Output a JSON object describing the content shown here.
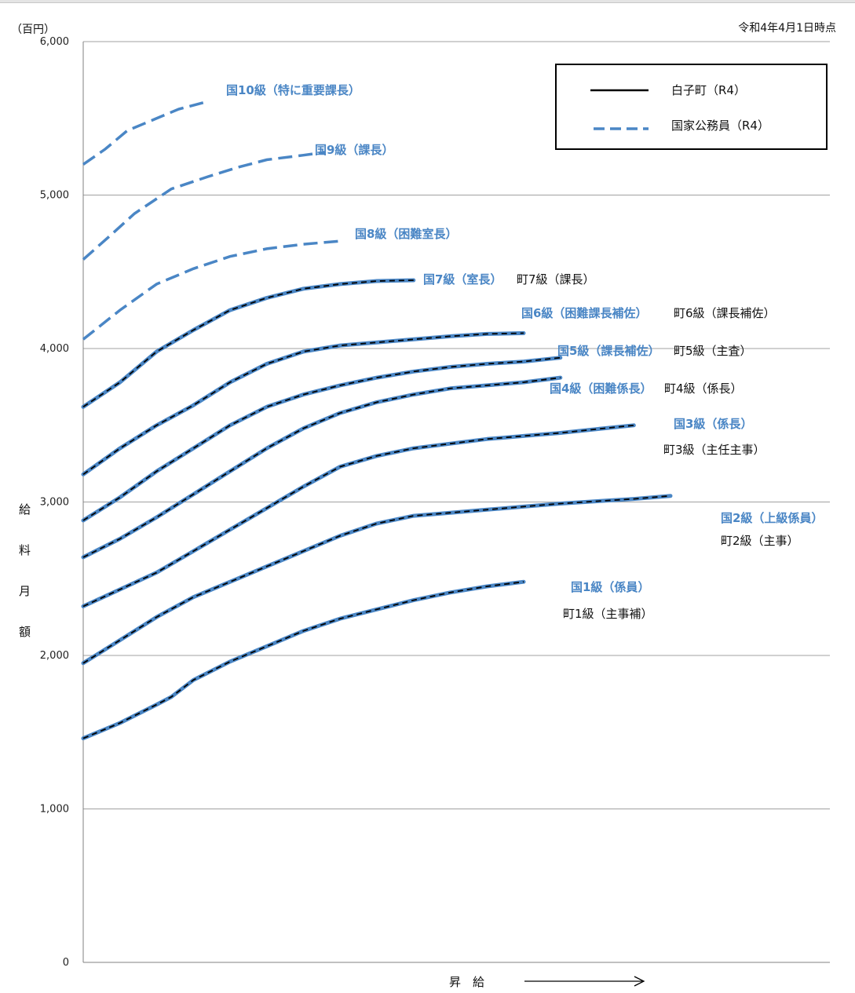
{
  "chart_data": {
    "type": "line",
    "title": "",
    "y_unit_label": "（百円）",
    "ylabel": "給料月額",
    "xlabel": "昇　給",
    "date_note": "令和4年4月1日時点",
    "ylim": [
      0,
      6000
    ],
    "xlim": [
      0,
      100
    ],
    "yticks": [
      "0",
      "1,000",
      "2,000",
      "3,000",
      "4,000",
      "5,000",
      "6,000"
    ],
    "ytick_values": [
      0,
      1000,
      2000,
      3000,
      4000,
      5000,
      6000
    ],
    "grid": true,
    "legend_position": "top-right",
    "legend": [
      {
        "name": "白子町（R4）",
        "style": "solid",
        "color": "#000000"
      },
      {
        "name": "国家公務員（R4）",
        "style": "dashed",
        "color": "#4a86c5"
      }
    ],
    "colors": {
      "national": "#4a86c5",
      "town": "#000000",
      "grid": "#a0a0a0"
    },
    "series": [
      {
        "key": "kuni10",
        "label": "国10級（特に重要課長）",
        "style": "dashed",
        "points": [
          [
            0,
            5200
          ],
          [
            3,
            5300
          ],
          [
            6,
            5420
          ],
          [
            10,
            5500
          ],
          [
            13,
            5560
          ],
          [
            17,
            5610
          ]
        ]
      },
      {
        "key": "kuni9",
        "label": "国9級（課長）",
        "style": "dashed",
        "points": [
          [
            0,
            4580
          ],
          [
            4,
            4750
          ],
          [
            7,
            4880
          ],
          [
            12,
            5040
          ],
          [
            17,
            5120
          ],
          [
            21,
            5180
          ],
          [
            25,
            5230
          ],
          [
            30,
            5260
          ],
          [
            33,
            5280
          ]
        ]
      },
      {
        "key": "kuni8",
        "label": "国8級（困難室長）",
        "style": "dashed",
        "points": [
          [
            0,
            4060
          ],
          [
            5,
            4250
          ],
          [
            10,
            4420
          ],
          [
            15,
            4520
          ],
          [
            20,
            4600
          ],
          [
            25,
            4650
          ],
          [
            30,
            4680
          ],
          [
            35,
            4700
          ]
        ]
      },
      {
        "key": "grade7",
        "label": "国7級（室長）",
        "town_label": "町7級（課長）",
        "style": "solid",
        "points": [
          [
            0,
            3620
          ],
          [
            5,
            3780
          ],
          [
            10,
            3980
          ],
          [
            15,
            4120
          ],
          [
            20,
            4250
          ],
          [
            25,
            4330
          ],
          [
            30,
            4390
          ],
          [
            35,
            4420
          ],
          [
            40,
            4440
          ],
          [
            45,
            4445
          ]
        ]
      },
      {
        "key": "grade6",
        "label": "国6級（困難課長補佐）",
        "town_label": "町6級（課長補佐）",
        "style": "solid",
        "points": [
          [
            0,
            3180
          ],
          [
            5,
            3350
          ],
          [
            10,
            3500
          ],
          [
            15,
            3630
          ],
          [
            20,
            3780
          ],
          [
            25,
            3900
          ],
          [
            30,
            3980
          ],
          [
            35,
            4020
          ],
          [
            40,
            4040
          ],
          [
            45,
            4060
          ],
          [
            50,
            4080
          ],
          [
            55,
            4095
          ],
          [
            60,
            4100
          ]
        ]
      },
      {
        "key": "grade5",
        "label": "国5級（課長補佐）",
        "town_label": "町5級（主査）",
        "style": "solid",
        "points": [
          [
            0,
            2880
          ],
          [
            5,
            3030
          ],
          [
            10,
            3200
          ],
          [
            15,
            3350
          ],
          [
            20,
            3500
          ],
          [
            25,
            3620
          ],
          [
            30,
            3700
          ],
          [
            35,
            3760
          ],
          [
            40,
            3810
          ],
          [
            45,
            3850
          ],
          [
            50,
            3880
          ],
          [
            55,
            3900
          ],
          [
            60,
            3915
          ],
          [
            65,
            3940
          ]
        ]
      },
      {
        "key": "grade4",
        "label": "国4級（困難係長）",
        "town_label": "町4級（係長）",
        "style": "solid",
        "points": [
          [
            0,
            2640
          ],
          [
            5,
            2760
          ],
          [
            10,
            2900
          ],
          [
            15,
            3050
          ],
          [
            20,
            3200
          ],
          [
            25,
            3350
          ],
          [
            30,
            3480
          ],
          [
            35,
            3580
          ],
          [
            40,
            3650
          ],
          [
            45,
            3700
          ],
          [
            50,
            3740
          ],
          [
            55,
            3760
          ],
          [
            60,
            3780
          ],
          [
            65,
            3810
          ]
        ]
      },
      {
        "key": "grade3",
        "label": "国3級（係長）",
        "town_label": "町3級（主任主事）",
        "style": "solid",
        "points": [
          [
            0,
            2320
          ],
          [
            5,
            2430
          ],
          [
            10,
            2540
          ],
          [
            15,
            2680
          ],
          [
            20,
            2820
          ],
          [
            25,
            2960
          ],
          [
            30,
            3100
          ],
          [
            35,
            3230
          ],
          [
            40,
            3300
          ],
          [
            45,
            3350
          ],
          [
            50,
            3380
          ],
          [
            55,
            3410
          ],
          [
            60,
            3430
          ],
          [
            65,
            3450
          ],
          [
            70,
            3475
          ],
          [
            75,
            3500
          ]
        ]
      },
      {
        "key": "grade2",
        "label": "国2級（上級係員）",
        "town_label": "町2級（主事）",
        "style": "solid",
        "points": [
          [
            0,
            1950
          ],
          [
            5,
            2100
          ],
          [
            10,
            2250
          ],
          [
            15,
            2380
          ],
          [
            20,
            2480
          ],
          [
            25,
            2580
          ],
          [
            30,
            2680
          ],
          [
            35,
            2780
          ],
          [
            40,
            2860
          ],
          [
            45,
            2910
          ],
          [
            50,
            2930
          ],
          [
            55,
            2950
          ],
          [
            60,
            2970
          ],
          [
            65,
            2990
          ],
          [
            70,
            3005
          ],
          [
            75,
            3020
          ],
          [
            80,
            3040
          ]
        ]
      },
      {
        "key": "grade1",
        "label": "国1級（係員）",
        "town_label": "町1級（主事補）",
        "style": "solid",
        "points": [
          [
            0,
            1460
          ],
          [
            5,
            1560
          ],
          [
            10,
            1680
          ],
          [
            12,
            1730
          ],
          [
            15,
            1840
          ],
          [
            20,
            1960
          ],
          [
            25,
            2060
          ],
          [
            30,
            2160
          ],
          [
            35,
            2240
          ],
          [
            40,
            2300
          ],
          [
            45,
            2360
          ],
          [
            50,
            2410
          ],
          [
            55,
            2450
          ],
          [
            60,
            2480
          ]
        ]
      }
    ]
  }
}
